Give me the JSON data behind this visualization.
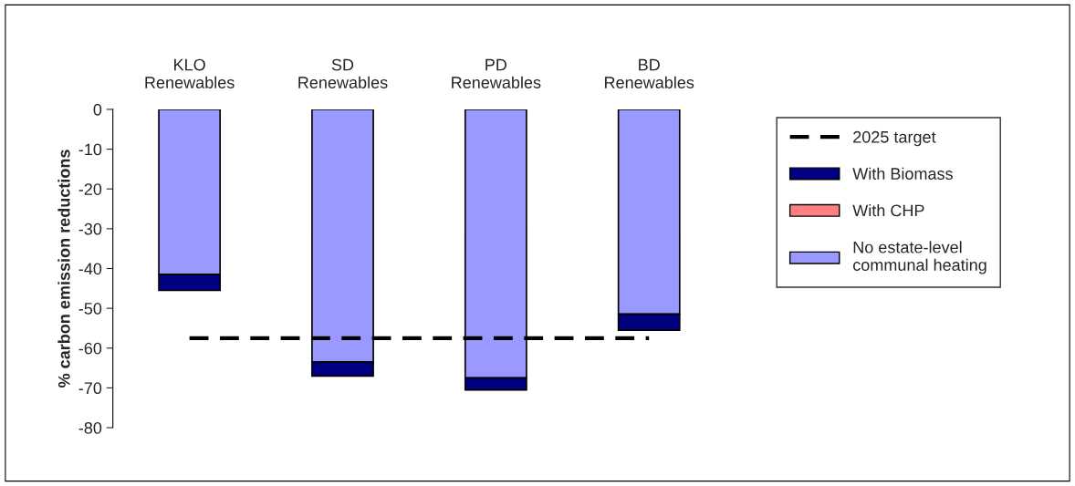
{
  "chart_data": {
    "type": "bar",
    "stacked": true,
    "ylabel": "% carbon emission reductions",
    "categories": [
      "KLO\nRenewables",
      "SD\nRenewables",
      "PD\nRenewables",
      "BD\nRenewables"
    ],
    "series": [
      {
        "name": "No estate-level\ncommunal heating",
        "color": "#9999ff",
        "values": [
          -41.5,
          -63.5,
          -67.5,
          -51.5
        ]
      },
      {
        "name": "With CHP",
        "color": "#ff8080",
        "values": [
          0,
          0,
          0,
          0
        ]
      },
      {
        "name": "With Biomass",
        "color": "#000080",
        "values": [
          -4,
          -3.5,
          -3,
          -4
        ]
      },
      {
        "name": "2025 target",
        "type": "line",
        "color": "#000000",
        "line_style": "dashed",
        "values": [
          -57.5,
          -57.5,
          -57.5,
          -57.5
        ]
      }
    ],
    "ylim": [
      -80,
      0
    ],
    "yticks": [
      -80,
      -70,
      -60,
      -50,
      -40,
      -30,
      -20,
      -10,
      0
    ],
    "grid": false,
    "legend": "right"
  }
}
